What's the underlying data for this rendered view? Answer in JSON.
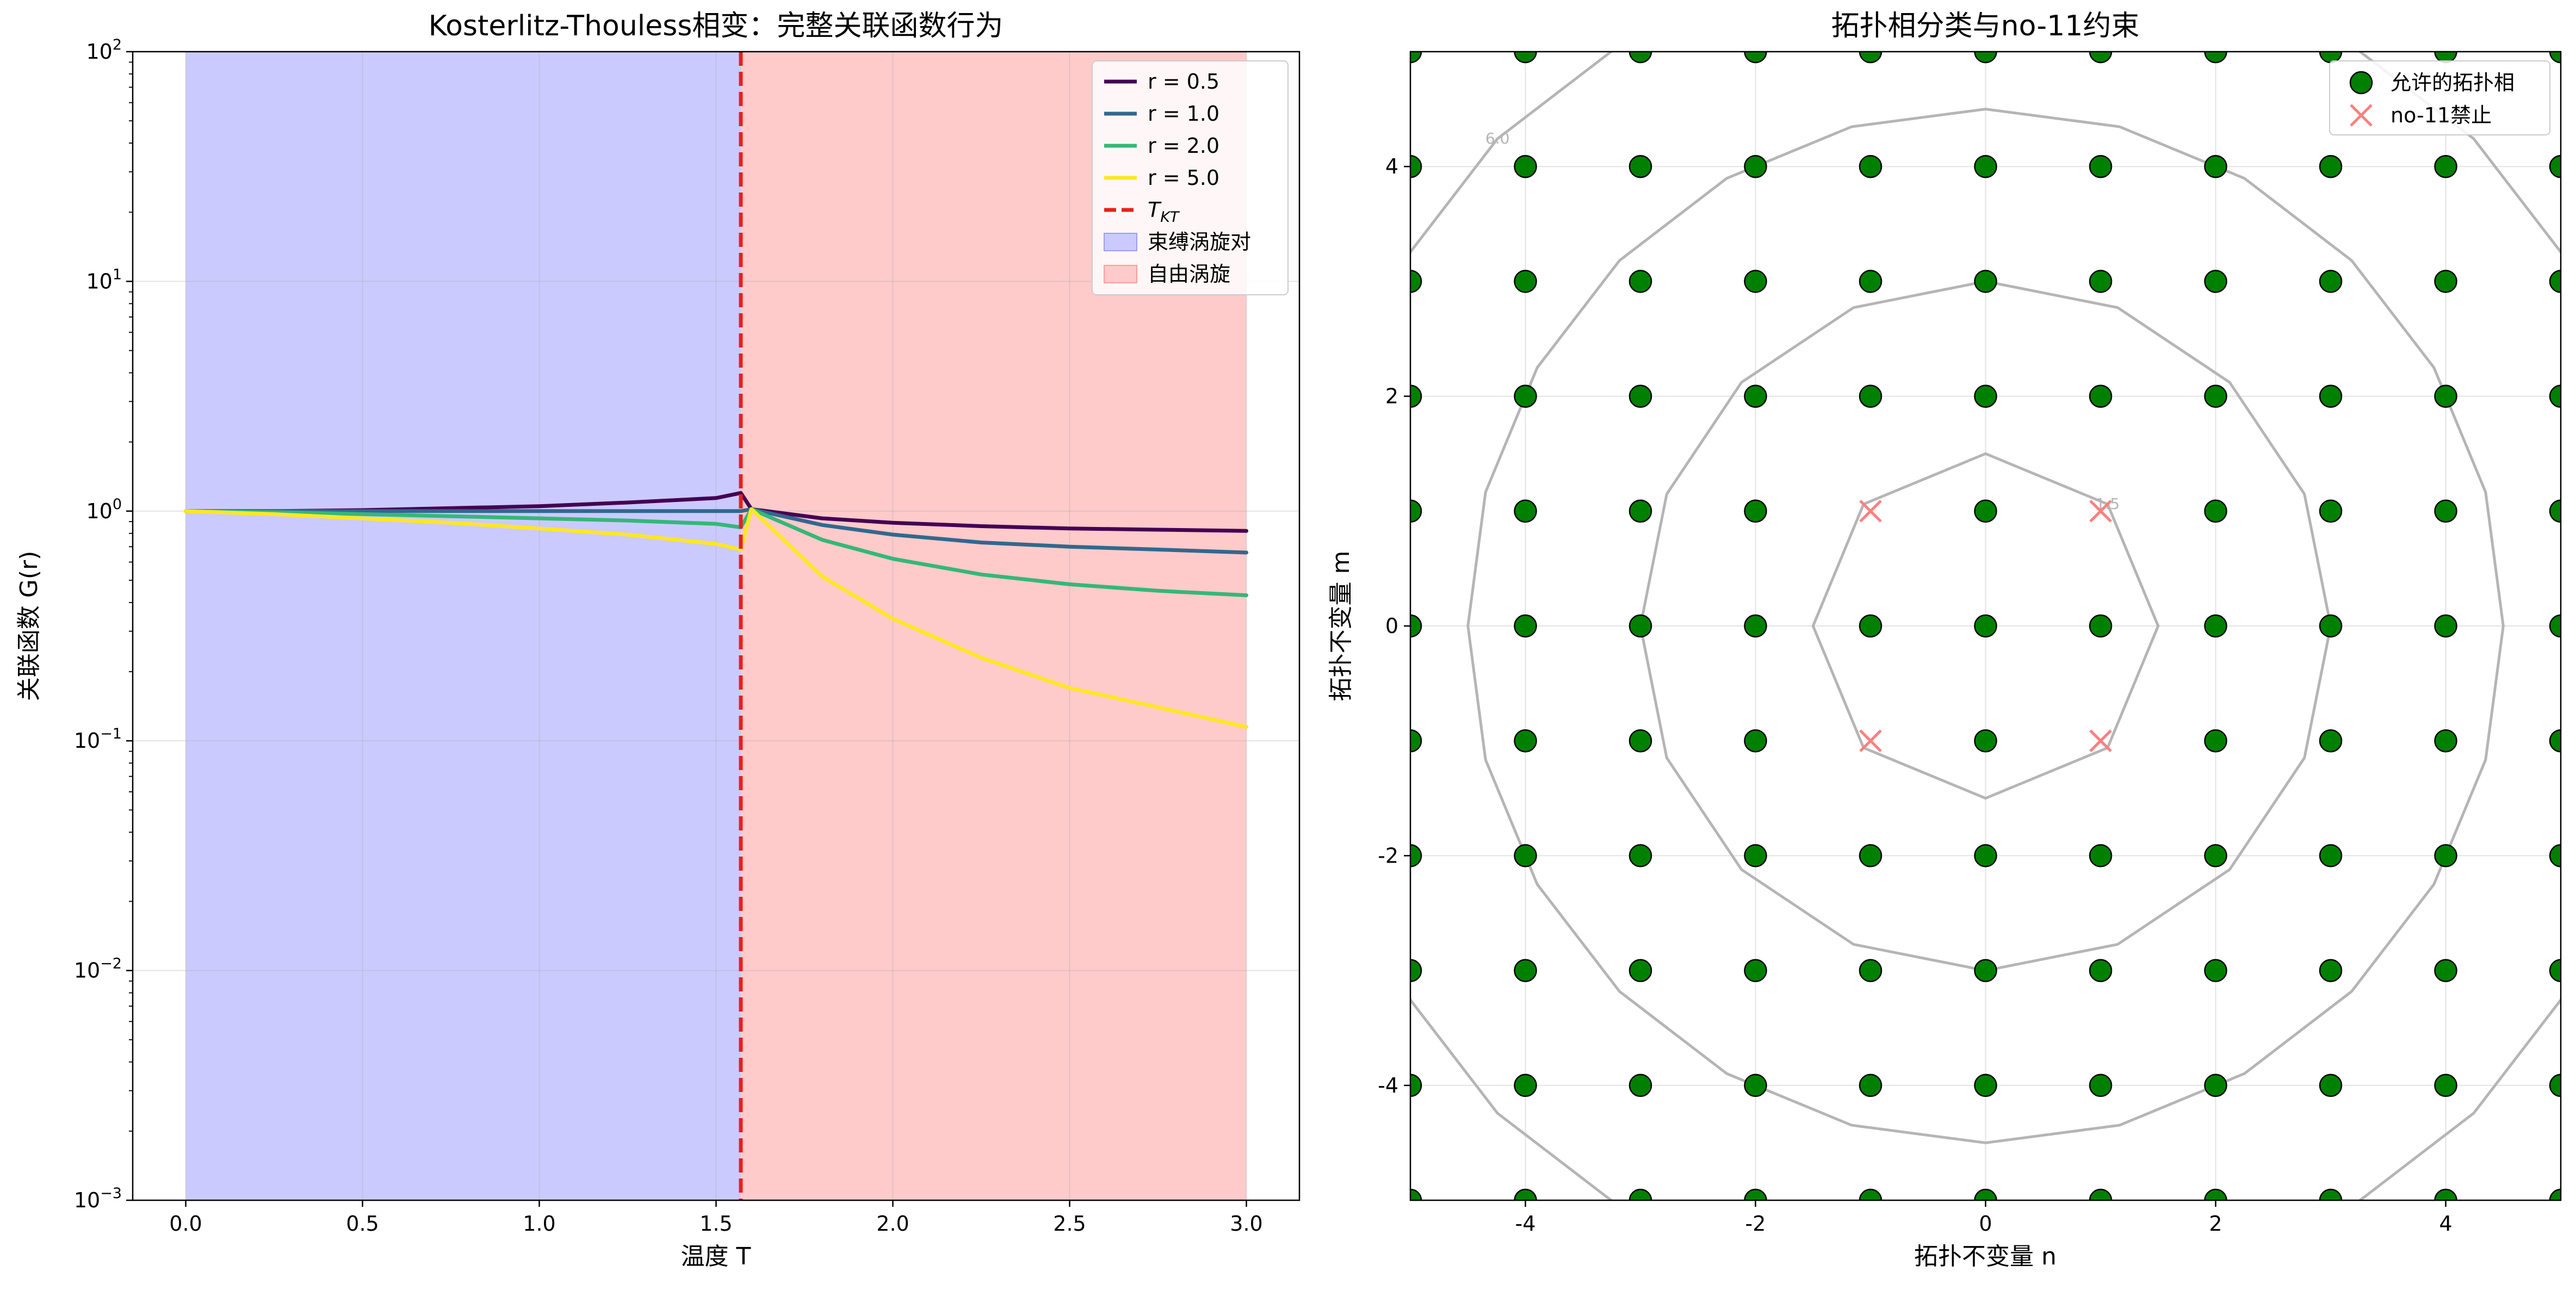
{
  "chart_data": [
    {
      "type": "line",
      "title": "Kosterlitz-Thouless相变：完整关联函数行为",
      "xlabel": "温度 T",
      "ylabel": "关联函数 G(r)",
      "xlim": [
        -0.15,
        3.15
      ],
      "ylim": [
        0.001,
        100
      ],
      "yscale": "log",
      "grid": true,
      "legend_position": "top-right",
      "xticks": [
        "0.0",
        "0.5",
        "1.0",
        "1.5",
        "2.0",
        "2.5",
        "3.0"
      ],
      "yticks": [
        {
          "value": 0.001,
          "base": "10",
          "exp": "−3"
        },
        {
          "value": 0.01,
          "base": "10",
          "exp": "−2"
        },
        {
          "value": 0.1,
          "base": "10",
          "exp": "−1"
        },
        {
          "value": 1,
          "base": "10",
          "exp": "0"
        },
        {
          "value": 10,
          "base": "10",
          "exp": "1"
        },
        {
          "value": 100,
          "base": "10",
          "exp": "2"
        }
      ],
      "series": [
        {
          "name": "r = 0.5",
          "color": "#440154",
          "x": [
            0.0,
            0.25,
            0.5,
            0.75,
            1.0,
            1.25,
            1.5,
            1.57,
            1.6,
            1.8,
            2.0,
            2.25,
            2.5,
            2.75,
            3.0
          ],
          "y": [
            1.0,
            1.0,
            1.01,
            1.03,
            1.05,
            1.09,
            1.14,
            1.2,
            1.02,
            0.93,
            0.89,
            0.86,
            0.84,
            0.83,
            0.82
          ]
        },
        {
          "name": "r = 1.0",
          "color": "#31688e",
          "x": [
            0.0,
            0.5,
            1.0,
            1.57,
            1.6,
            1.8,
            2.0,
            2.25,
            2.5,
            2.75,
            3.0
          ],
          "y": [
            1.0,
            1.0,
            1.0,
            1.0,
            1.02,
            0.87,
            0.79,
            0.73,
            0.7,
            0.68,
            0.66
          ]
        },
        {
          "name": "r = 2.0",
          "color": "#35b779",
          "x": [
            0.0,
            0.25,
            0.5,
            0.75,
            1.0,
            1.25,
            1.5,
            1.57,
            1.6,
            1.8,
            2.0,
            2.25,
            2.5,
            2.75,
            3.0
          ],
          "y": [
            1.0,
            0.99,
            0.97,
            0.95,
            0.93,
            0.91,
            0.88,
            0.85,
            1.02,
            0.75,
            0.62,
            0.53,
            0.48,
            0.45,
            0.43
          ]
        },
        {
          "name": "r = 5.0",
          "color": "#fde725",
          "x": [
            0.0,
            0.25,
            0.5,
            0.75,
            1.0,
            1.25,
            1.5,
            1.57,
            1.6,
            1.8,
            2.0,
            2.25,
            2.5,
            2.75,
            3.0
          ],
          "y": [
            1.0,
            0.97,
            0.93,
            0.89,
            0.84,
            0.79,
            0.72,
            0.68,
            1.02,
            0.52,
            0.34,
            0.23,
            0.17,
            0.14,
            0.115
          ]
        }
      ],
      "critical_line": {
        "name_main": "T",
        "name_sub": "KT",
        "x": 1.57,
        "color": "#e8201a"
      },
      "regions": [
        {
          "name": "束缚涡旋对",
          "x_start": 0.0,
          "x_end": 1.57,
          "color": "#cbcaff"
        },
        {
          "name": "自由涡旋",
          "x_start": 1.57,
          "x_end": 3.0,
          "color": "#ffcaca"
        }
      ]
    },
    {
      "type": "scatter",
      "title": "拓扑相分类与no-11约束",
      "xlabel": "拓扑不变量 n",
      "ylabel": "拓扑不变量 m",
      "xlim": [
        -5,
        5
      ],
      "ylim": [
        -5,
        5
      ],
      "grid": true,
      "legend_position": "top-right",
      "xticks": [
        "-4",
        "-2",
        "0",
        "2",
        "4"
      ],
      "yticks": [
        "-4",
        "-2",
        "0",
        "2",
        "4"
      ],
      "series": [
        {
          "name": "允许的拓扑相",
          "marker": "circle",
          "color": "#008000",
          "rule": "all integer (n, m) with -5 ≤ n, m ≤ 5 except the forbidden points"
        },
        {
          "name": "no-11禁止",
          "marker": "x",
          "color": "#ff7f7f",
          "points": [
            [
              -1,
              1
            ],
            [
              1,
              1
            ],
            [
              -1,
              -1
            ],
            [
              1,
              -1
            ]
          ]
        }
      ],
      "contours": [
        {
          "level": 1.5,
          "label": "1.5"
        },
        {
          "level": 3.0,
          "label": ""
        },
        {
          "level": 4.5,
          "label": ""
        },
        {
          "level": 6.0,
          "label": "6.0"
        }
      ]
    }
  ]
}
